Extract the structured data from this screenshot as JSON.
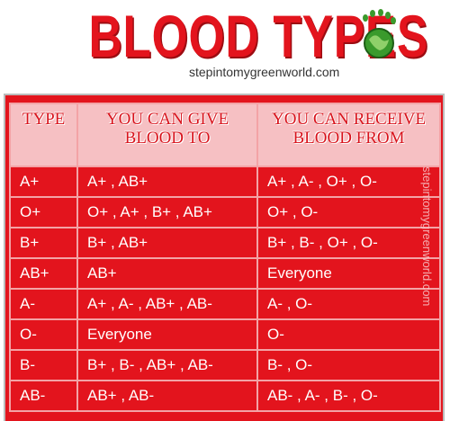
{
  "header": {
    "title": "BLOOD TYPES",
    "website": "stepintomygreenworld.com"
  },
  "table": {
    "columns": [
      "TYPE",
      "YOU CAN GIVE BLOOD TO",
      "YOU CAN RECEIVE BLOOD FROM"
    ],
    "rows": [
      [
        "A+",
        "A+ , AB+",
        "A+ , A- , O+ , O-"
      ],
      [
        "O+",
        "O+ , A+ , B+ , AB+",
        "O+ , O-"
      ],
      [
        "B+",
        "B+ , AB+",
        "B+ , B- , O+ , O-"
      ],
      [
        "AB+",
        "AB+",
        "Everyone"
      ],
      [
        "A-",
        "A+ , A- , AB+ , AB-",
        "A- , O-"
      ],
      [
        "O-",
        "Everyone",
        "O-"
      ],
      [
        "B-",
        "B+ , B- , AB+ , AB-",
        "B- , O-"
      ],
      [
        "AB-",
        "AB+ , AB-",
        "AB- , A- , B- , O-"
      ]
    ]
  },
  "watermark": "stepintomygreenworld.com"
}
